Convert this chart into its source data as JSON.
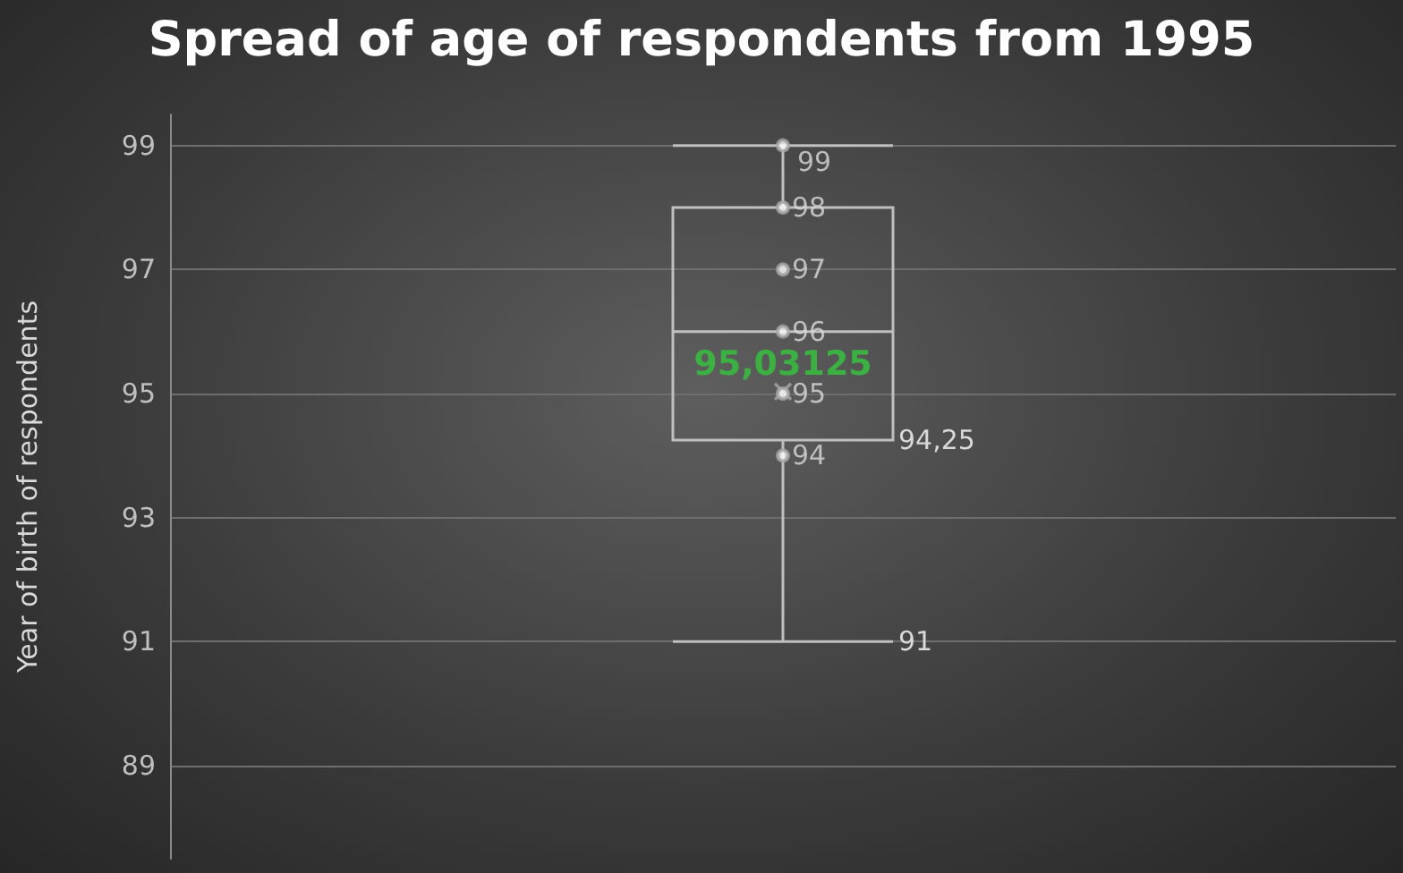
{
  "chart_data": {
    "type": "box",
    "title": "Spread of age of respondents from 1995",
    "ylabel": "Year of birth of respondents",
    "categories": [
      null
    ],
    "boxes": [
      {
        "low": 91,
        "q1": 94.25,
        "median": 96,
        "q3": 98,
        "high": 99,
        "mean": 95.03125
      }
    ],
    "color": "#bfbfbf",
    "series": [
      {
        "type": "scatter",
        "x": [
          null,
          null,
          null,
          null,
          null,
          null
        ],
        "values": [
          99,
          98,
          97,
          96,
          95,
          94
        ],
        "value_labels": [
          "99",
          "98",
          "97",
          "96",
          "95",
          "94"
        ],
        "color": "#a6a6a6"
      }
    ],
    "annotations": [
      "94,25",
      "91",
      "95,03125"
    ],
    "ylim": [
      87.5,
      99.5
    ],
    "yticks": [
      89,
      91,
      93,
      95,
      97,
      99
    ],
    "grid": "y",
    "marker": "circle"
  }
}
